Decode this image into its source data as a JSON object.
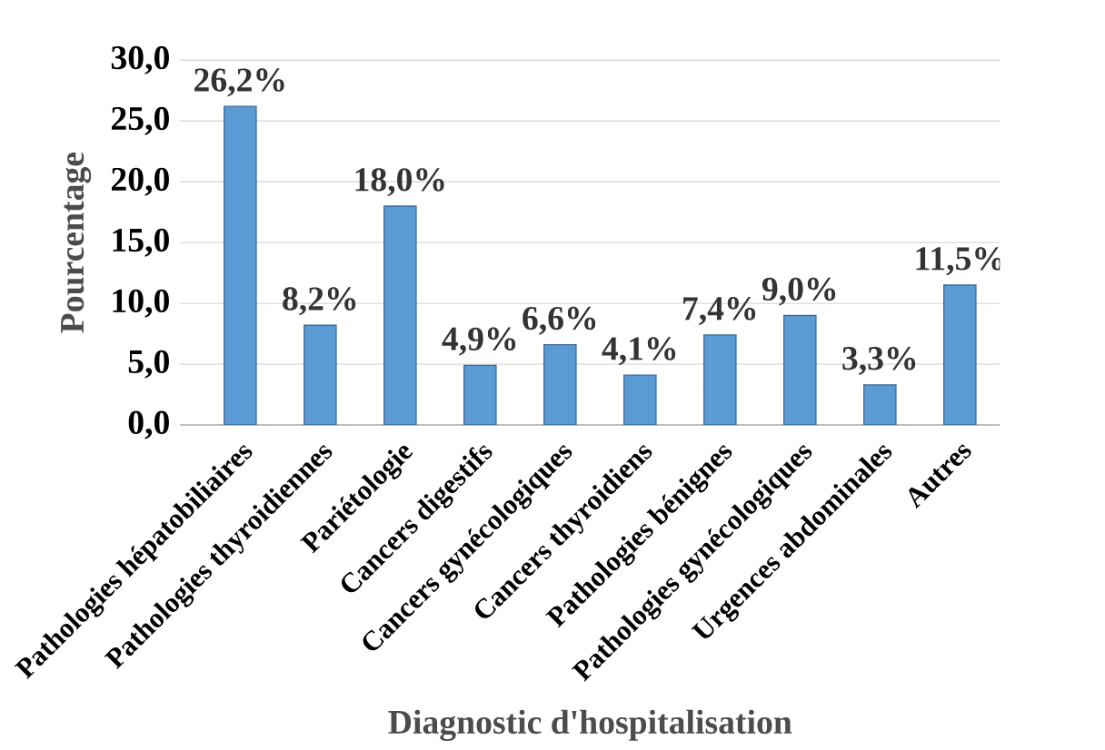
{
  "chart_data": {
    "type": "bar",
    "xlabel": "Diagnostic d'hospitalisation",
    "ylabel": "Pourcentage",
    "categories": [
      "Pathologies hépatobiliaires",
      "Pathologies thyroidiennes",
      "Pariétologie",
      "Cancers digestifs",
      "Cancers gynécologiques",
      "Cancers thyroidiens",
      "Pathologies bénignes",
      "Pathologies gynécologiques",
      "Urgences abdominales",
      "Autres"
    ],
    "values": [
      26.2,
      8.2,
      18.0,
      4.9,
      6.6,
      4.1,
      7.4,
      9.0,
      3.3,
      11.5
    ],
    "value_labels": [
      "26,2%",
      "8,2%",
      "18,0%",
      "4,9%",
      "6,6%",
      "4,1%",
      "7,4%",
      "9,0%",
      "3,3%",
      "11,5%"
    ],
    "color": "#5b9bd5",
    "ylim": [
      0,
      30
    ],
    "yticks": [
      {
        "value": 0,
        "label": "0,0"
      },
      {
        "value": 5,
        "label": "5,0"
      },
      {
        "value": 10,
        "label": "10,0"
      },
      {
        "value": 15,
        "label": "15,0"
      },
      {
        "value": 20,
        "label": "20,0"
      },
      {
        "value": 25,
        "label": "25,0"
      },
      {
        "value": 30,
        "label": "30,0"
      }
    ],
    "grid": true
  }
}
